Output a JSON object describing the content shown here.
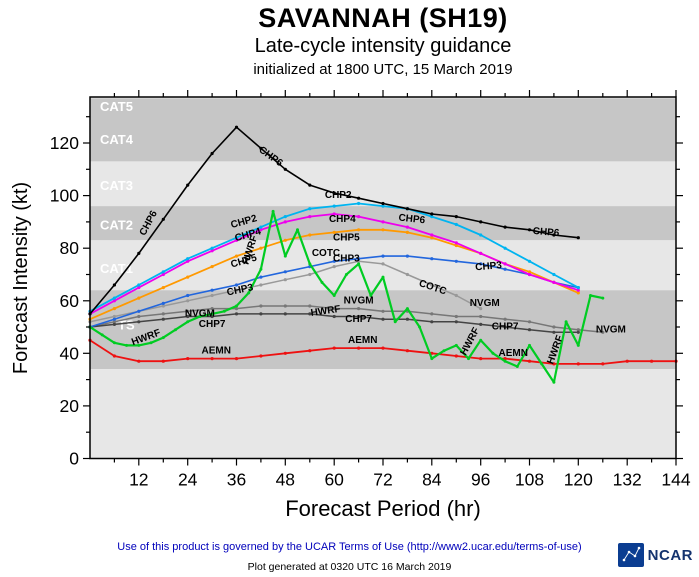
{
  "header": {
    "title": "SAVANNAH (SH19)",
    "subtitle": "Late-cycle intensity guidance",
    "init_line": "initialized at 1800 UTC, 15 March 2019"
  },
  "colors": {
    "band_dark": "#c6c6c6",
    "band_light": "#e7e7e7",
    "frame": "#000000",
    "band_label": "#ffffff",
    "series_label": "#000000",
    "terms_link": "#0000bb"
  },
  "axes": {
    "x": {
      "label": "Forecast Period (hr)",
      "min": 0,
      "max": 144,
      "major_ticks": [
        12,
        24,
        36,
        48,
        60,
        72,
        84,
        96,
        108,
        120,
        132,
        144
      ],
      "minor_step": 6
    },
    "y": {
      "label": "Forecast Intensity (kt)",
      "min": 0,
      "max": 137.5,
      "major_ticks": [
        0,
        20,
        40,
        60,
        80,
        100,
        120
      ],
      "minor_step": 10
    }
  },
  "bands": [
    {
      "label": "CAT5",
      "from": 137,
      "to": 140,
      "shade": "light",
      "label_kt": 134,
      "label_dx": 10
    },
    {
      "label": "CAT4",
      "from": 113,
      "to": 137,
      "shade": "dark",
      "label_kt": 121.5,
      "label_dx": 10
    },
    {
      "label": "CAT3",
      "from": 96,
      "to": 113,
      "shade": "light",
      "label_kt": 104,
      "label_dx": 10
    },
    {
      "label": "CAT2",
      "from": 83,
      "to": 96,
      "shade": "dark",
      "label_kt": 89,
      "label_dx": 10
    },
    {
      "label": "CAT1",
      "from": 64,
      "to": 83,
      "shade": "light",
      "label_kt": 72.5,
      "label_dx": 10
    },
    {
      "label": "TS",
      "from": 34,
      "to": 64,
      "shade": "dark",
      "label_kt": 51,
      "label_dx": 28
    },
    {
      "label": "",
      "from": 0,
      "to": 34,
      "shade": "light",
      "label_kt": null,
      "label_dx": 0
    }
  ],
  "chart_data": {
    "type": "line",
    "title": "SAVANNAH (SH19) late-cycle intensity guidance, initialized 1800 UTC 15 March 2019",
    "xlabel": "Forecast Period (hr)",
    "ylabel": "Forecast Intensity (kt)",
    "xlim": [
      0,
      144
    ],
    "ylim": [
      0,
      137.5
    ],
    "x_unit": "hr",
    "y_unit": "kt",
    "grid": false,
    "legend": "inline-labels",
    "series": [
      {
        "name": "COTC",
        "color": "#999999",
        "width": 1.5,
        "marker_r": 1.6,
        "x": [
          0,
          6,
          12,
          18,
          24,
          30,
          36,
          42,
          48,
          54,
          60,
          66,
          72,
          78,
          84,
          90,
          96
        ],
        "values": [
          52,
          54,
          56,
          58,
          60,
          62,
          64,
          66,
          68,
          70,
          73,
          75,
          74,
          70,
          66,
          62,
          57
        ],
        "labels": [
          [
            58,
            77,
            0
          ],
          [
            84,
            64,
            18
          ]
        ]
      },
      {
        "name": "NVGM",
        "color": "#777777",
        "width": 1.5,
        "marker_r": 1.6,
        "x": [
          0,
          6,
          12,
          18,
          24,
          30,
          36,
          42,
          48,
          54,
          60,
          66,
          72,
          78,
          84,
          90,
          96,
          102,
          108,
          114,
          120,
          126
        ],
        "values": [
          50,
          52,
          54,
          55,
          56,
          57,
          57,
          58,
          58,
          58,
          57,
          57,
          56,
          56,
          55,
          54,
          54,
          53,
          52,
          50,
          49,
          48
        ],
        "labels": [
          [
            27,
            54,
            0
          ],
          [
            66,
            59,
            0
          ],
          [
            97,
            58,
            0
          ],
          [
            128,
            48,
            0
          ]
        ]
      },
      {
        "name": "CHP7",
        "color": "#444444",
        "width": 1.5,
        "marker_r": 1.6,
        "x": [
          0,
          6,
          12,
          18,
          24,
          30,
          36,
          42,
          48,
          54,
          60,
          66,
          72,
          78,
          84,
          90,
          96,
          102,
          108,
          114,
          120
        ],
        "values": [
          50,
          51,
          52,
          53,
          54,
          54,
          55,
          55,
          55,
          55,
          54,
          54,
          53,
          53,
          52,
          52,
          51,
          50,
          49,
          48,
          48
        ],
        "labels": [
          [
            30,
            50,
            0
          ],
          [
            66,
            52,
            0
          ],
          [
            102,
            49,
            0
          ]
        ]
      },
      {
        "name": "CHP3",
        "color": "#2266dd",
        "width": 1.6,
        "marker_r": 1.6,
        "x": [
          0,
          6,
          12,
          18,
          24,
          30,
          36,
          42,
          48,
          54,
          60,
          66,
          72,
          78,
          84,
          90,
          96,
          102,
          108,
          114,
          120
        ],
        "values": [
          50,
          53,
          56,
          59,
          62,
          64,
          66,
          69,
          71,
          73,
          75,
          76,
          77,
          77,
          76,
          75,
          74,
          72,
          70,
          67,
          65
        ],
        "labels": [
          [
            37,
            63,
            -12
          ],
          [
            63,
            75,
            0
          ],
          [
            98,
            72,
            -5
          ]
        ]
      },
      {
        "name": "CHP5",
        "color": "#ff9900",
        "width": 1.8,
        "marker_r": 1.6,
        "x": [
          0,
          6,
          12,
          18,
          24,
          30,
          36,
          42,
          48,
          54,
          60,
          66,
          72,
          78,
          84,
          90,
          96,
          102,
          108,
          114,
          120
        ],
        "values": [
          53,
          57,
          61,
          65,
          69,
          73,
          77,
          80,
          83,
          85,
          86,
          87,
          87,
          86,
          84,
          81,
          78,
          74,
          71,
          67,
          63
        ],
        "labels": [
          [
            38,
            74,
            -16
          ],
          [
            63,
            83,
            0
          ]
        ]
      },
      {
        "name": "CHP4",
        "color": "#ee00ee",
        "width": 1.8,
        "marker_r": 1.6,
        "x": [
          0,
          6,
          12,
          18,
          24,
          30,
          36,
          42,
          48,
          54,
          60,
          66,
          72,
          78,
          84,
          90,
          96,
          102,
          108,
          114,
          120
        ],
        "values": [
          55,
          60,
          65,
          70,
          75,
          79,
          83,
          87,
          90,
          92,
          93,
          92,
          90,
          88,
          85,
          82,
          78,
          74,
          70,
          67,
          64
        ],
        "labels": [
          [
            39,
            84,
            -16
          ],
          [
            62,
            90,
            0
          ]
        ]
      },
      {
        "name": "CHP2",
        "color": "#00b4f0",
        "width": 1.8,
        "marker_r": 1.6,
        "x": [
          0,
          6,
          12,
          18,
          24,
          30,
          36,
          42,
          48,
          54,
          60,
          66,
          72,
          78,
          84,
          90,
          96,
          102,
          108,
          114,
          120
        ],
        "values": [
          56,
          61,
          66,
          71,
          76,
          80,
          84,
          88,
          92,
          95,
          96,
          97,
          96,
          95,
          92,
          89,
          85,
          80,
          75,
          70,
          65
        ],
        "labels": [
          [
            38,
            89,
            -16
          ],
          [
            61,
            99,
            0
          ]
        ]
      },
      {
        "name": "CHP6",
        "color": "#000000",
        "width": 1.6,
        "marker_r": 1.6,
        "x": [
          0,
          6,
          12,
          18,
          24,
          30,
          36,
          42,
          48,
          54,
          60,
          66,
          72,
          78,
          84,
          90,
          96,
          102,
          108,
          114,
          120
        ],
        "values": [
          55,
          66,
          78,
          91,
          104,
          116,
          126,
          118,
          110,
          104,
          101,
          99,
          97,
          95,
          93,
          92,
          90,
          88,
          87,
          85,
          84
        ],
        "labels": [
          [
            15,
            89,
            -62
          ],
          [
            44,
            114,
            36
          ],
          [
            79,
            90,
            6
          ],
          [
            112,
            85,
            5
          ]
        ]
      },
      {
        "name": "AEMN",
        "color": "#ee1111",
        "width": 1.8,
        "marker_r": 1.6,
        "x": [
          0,
          6,
          12,
          18,
          24,
          30,
          36,
          42,
          48,
          54,
          60,
          66,
          72,
          78,
          84,
          90,
          96,
          102,
          108,
          114,
          120,
          126,
          132,
          138,
          144
        ],
        "values": [
          45,
          39,
          37,
          37,
          38,
          38,
          38,
          39,
          40,
          41,
          42,
          42,
          42,
          41,
          40,
          39,
          38,
          38,
          37,
          36,
          36,
          36,
          37,
          37,
          37
        ],
        "labels": [
          [
            31,
            40,
            0
          ],
          [
            67,
            44,
            0
          ],
          [
            104,
            39,
            0
          ]
        ]
      },
      {
        "name": "HWRF",
        "color": "#00cc22",
        "width": 2.2,
        "marker_r": 1.5,
        "x": [
          0,
          3,
          6,
          9,
          12,
          15,
          18,
          21,
          24,
          27,
          30,
          33,
          36,
          39,
          42,
          45,
          48,
          51,
          54,
          57,
          60,
          63,
          66,
          69,
          72,
          75,
          78,
          81,
          84,
          87,
          90,
          93,
          96,
          99,
          102,
          105,
          108,
          111,
          114,
          117,
          120,
          123,
          126
        ],
        "values": [
          50,
          47,
          44,
          43,
          43,
          44,
          46,
          49,
          52,
          54,
          55,
          56,
          58,
          63,
          72,
          94,
          77,
          87,
          74,
          67,
          62,
          70,
          74,
          62,
          69,
          52,
          57,
          50,
          38,
          41,
          43,
          38,
          45,
          40,
          37,
          35,
          43,
          36,
          29,
          52,
          43,
          62,
          61
        ],
        "labels": [
          [
            14,
            45,
            -20
          ],
          [
            40,
            79,
            -72
          ],
          [
            58,
            55,
            -8
          ],
          [
            94,
            44,
            -62
          ],
          [
            115,
            41,
            -70
          ]
        ]
      }
    ]
  },
  "footer": {
    "terms": "Use of this product is governed by the UCAR Terms of Use (http://www2.ucar.edu/terms-of-use)",
    "generated": "Plot generated at 0320 UTC  16 March 2019"
  },
  "logo": {
    "text": "NCAR"
  }
}
